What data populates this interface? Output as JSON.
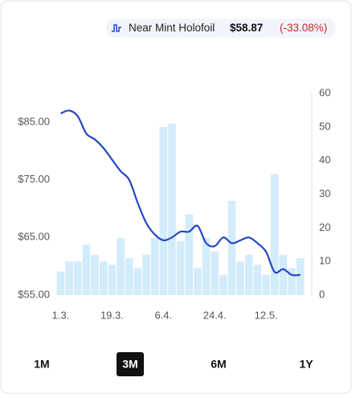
{
  "chart_data": {
    "type": "combo",
    "legend": {
      "name": "Near Mint Holofoil",
      "price": "$58.87",
      "change": "(-33.08%)"
    },
    "categories": [
      "1.3.",
      null,
      null,
      null,
      null,
      null,
      "19.3.",
      null,
      null,
      null,
      null,
      null,
      "6.4.",
      null,
      null,
      null,
      null,
      null,
      "24.4.",
      null,
      null,
      null,
      null,
      null,
      "12.5.",
      null,
      null,
      null,
      null
    ],
    "series": [
      {
        "name": "Near Mint Holofoil",
        "type": "line",
        "color": "#2447c4",
        "axis": "y",
        "values": [
          86.5,
          87,
          86,
          83,
          82,
          80.5,
          78.5,
          76.5,
          75,
          71,
          67.5,
          65.5,
          64.5,
          65,
          66,
          66,
          67,
          64,
          63.5,
          65,
          64,
          64.5,
          65,
          64,
          62.5,
          59,
          59.5,
          58.5,
          58.5
        ]
      },
      {
        "type": "bar",
        "color": "#d3ecfb",
        "axis": "y2",
        "values": [
          7,
          10,
          10,
          15,
          12,
          10,
          9,
          17,
          11,
          8,
          12,
          17,
          50,
          51,
          16,
          24,
          8,
          17,
          13,
          6,
          28,
          10,
          12,
          9,
          6,
          36,
          12,
          8,
          11
        ]
      }
    ],
    "ylim": [
      55,
      90
    ],
    "yticks": [
      {
        "value": 55,
        "label": "$55.00"
      },
      {
        "value": 65,
        "label": "$65.00"
      },
      {
        "value": 75,
        "label": "$75.00"
      },
      {
        "value": 85,
        "label": "$85.00"
      }
    ],
    "y2lim": [
      0,
      60
    ],
    "y2ticks": [
      0,
      10,
      20,
      30,
      40,
      50,
      60
    ],
    "ranges": [
      "1M",
      "3M",
      "6M",
      "1Y"
    ],
    "selected_range": 1
  }
}
